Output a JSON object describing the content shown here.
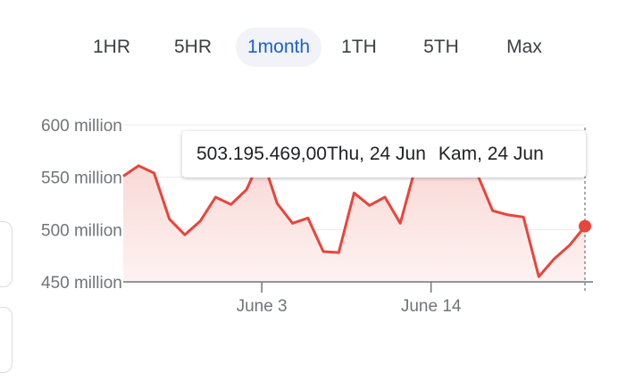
{
  "tabs": [
    {
      "label": "1HR",
      "active": false
    },
    {
      "label": "5HR",
      "active": false
    },
    {
      "label": "1month",
      "active": true
    },
    {
      "label": "1TH",
      "active": false
    },
    {
      "label": "5TH",
      "active": false
    },
    {
      "label": "Max",
      "active": false
    }
  ],
  "tooltip": {
    "value": "503.195.469,00",
    "date": "Thu, 24 Jun",
    "date_local": "Kam, 24 Jun"
  },
  "colors": {
    "line": "#e8453c",
    "fill": "#fbe4e2",
    "accent": "#1a5fd6",
    "grid": "#ebebeb"
  },
  "chart_data": {
    "type": "line",
    "y_tick_labels": [
      "600 million",
      "550 million",
      "500 million",
      "450 million"
    ],
    "y_ticks": [
      600,
      550,
      500,
      450
    ],
    "ylim": [
      450,
      600
    ],
    "y_unit": "million",
    "x_tick_labels": [
      "June 3",
      "June 14"
    ],
    "x_ticks": [
      "2021-06-03",
      "2021-06-14"
    ],
    "series": [
      {
        "x": [
          "2021-05-25",
          "2021-05-26",
          "2021-05-27",
          "2021-05-28",
          "2021-05-29",
          "2021-05-30",
          "2021-05-31",
          "2021-06-01",
          "2021-06-02",
          "2021-06-03",
          "2021-06-04",
          "2021-06-05",
          "2021-06-06",
          "2021-06-07",
          "2021-06-08",
          "2021-06-09",
          "2021-06-10",
          "2021-06-11",
          "2021-06-12",
          "2021-06-13",
          "2021-06-14",
          "2021-06-15",
          "2021-06-16",
          "2021-06-17",
          "2021-06-18",
          "2021-06-19",
          "2021-06-20",
          "2021-06-21",
          "2021-06-22",
          "2021-06-23",
          "2021-06-24"
        ],
        "values": [
          551,
          561,
          554,
          510,
          495,
          508,
          531,
          524,
          538,
          570,
          525,
          506,
          511,
          479,
          478,
          535,
          523,
          531,
          506,
          560,
          568,
          566,
          565,
          553,
          518,
          514,
          512,
          455,
          472,
          485,
          503
        ]
      }
    ],
    "highlight": {
      "x": "2021-06-24",
      "value": 503.195469
    },
    "grid": true
  }
}
